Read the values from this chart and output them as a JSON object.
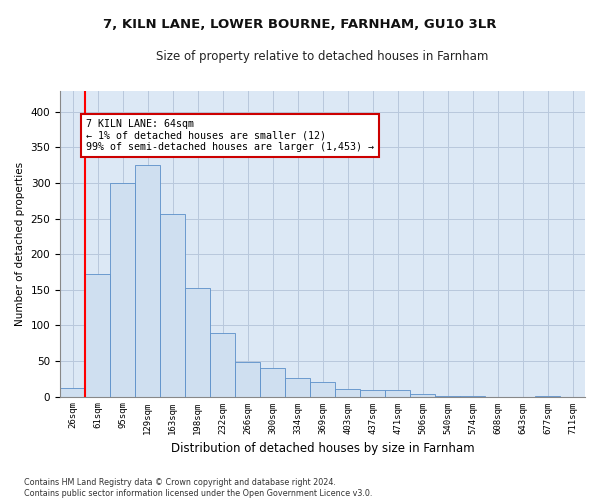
{
  "title_line1": "7, KILN LANE, LOWER BOURNE, FARNHAM, GU10 3LR",
  "title_line2": "Size of property relative to detached houses in Farnham",
  "xlabel": "Distribution of detached houses by size in Farnham",
  "ylabel": "Number of detached properties",
  "bar_labels": [
    "26sqm",
    "61sqm",
    "95sqm",
    "129sqm",
    "163sqm",
    "198sqm",
    "232sqm",
    "266sqm",
    "300sqm",
    "334sqm",
    "369sqm",
    "403sqm",
    "437sqm",
    "471sqm",
    "506sqm",
    "540sqm",
    "574sqm",
    "608sqm",
    "643sqm",
    "677sqm",
    "711sqm"
  ],
  "bar_values": [
    12,
    172,
    300,
    325,
    257,
    152,
    90,
    49,
    40,
    26,
    20,
    10,
    9,
    9,
    3,
    1,
    1,
    0,
    0,
    1,
    0
  ],
  "bar_color": "#cfdff0",
  "bar_edge_color": "#5b8fc9",
  "highlight_color": "#ff0000",
  "annotation_text": "7 KILN LANE: 64sqm\n← 1% of detached houses are smaller (12)\n99% of semi-detached houses are larger (1,453) →",
  "annotation_box_color": "#ffffff",
  "annotation_box_edge": "#cc0000",
  "ylim": [
    0,
    430
  ],
  "yticks": [
    0,
    50,
    100,
    150,
    200,
    250,
    300,
    350,
    400
  ],
  "grid_color": "#b8c8dc",
  "background_color": "#dce8f5",
  "footnote": "Contains HM Land Registry data © Crown copyright and database right 2024.\nContains public sector information licensed under the Open Government Licence v3.0."
}
